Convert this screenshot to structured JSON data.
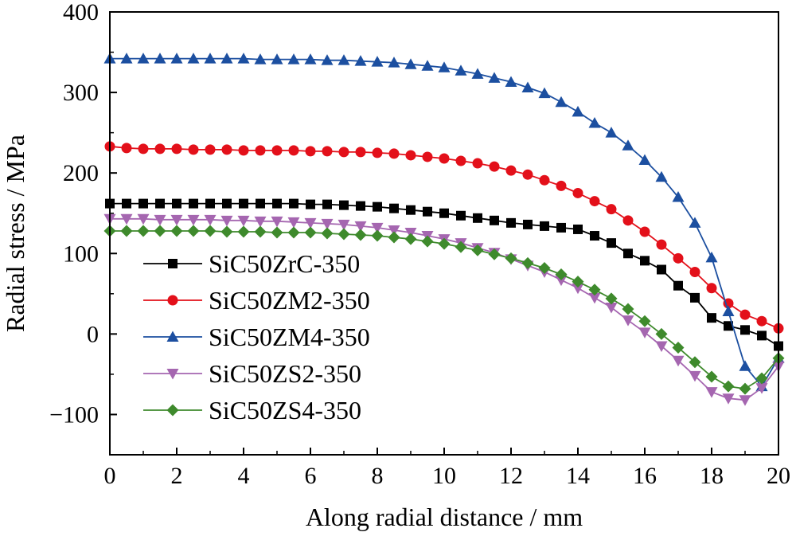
{
  "chart_data": {
    "type": "line",
    "title": "",
    "xlabel": "Along radial distance / mm",
    "ylabel": "Radial stress / MPa",
    "xlim": [
      0,
      20
    ],
    "ylim": [
      -150,
      400
    ],
    "xticks": [
      0,
      2,
      4,
      6,
      8,
      10,
      12,
      14,
      16,
      18,
      20
    ],
    "yticks": [
      -100,
      0,
      100,
      200,
      300,
      400
    ],
    "ytick_labels": [
      "−100",
      "0",
      "100",
      "200",
      "300",
      "400"
    ],
    "grid": false,
    "legend_position": "lower-left",
    "x": [
      0,
      0.5,
      1,
      1.5,
      2,
      2.5,
      3,
      3.5,
      4,
      4.5,
      5,
      5.5,
      6,
      6.5,
      7,
      7.5,
      8,
      8.5,
      9,
      9.5,
      10,
      10.5,
      11,
      11.5,
      12,
      12.5,
      13,
      13.5,
      14,
      14.5,
      15,
      15.5,
      16,
      16.5,
      17,
      17.5,
      18,
      18.5,
      19,
      19.5,
      20
    ],
    "series": [
      {
        "name": "SiC50ZrC-350",
        "color": "#000000",
        "marker": "square",
        "values": [
          162,
          162,
          162,
          162,
          162,
          162,
          162,
          162,
          162,
          162,
          162,
          162,
          161,
          161,
          160,
          159,
          158,
          156,
          154,
          152,
          150,
          147,
          144,
          141,
          138,
          136,
          134,
          132,
          130,
          122,
          113,
          100,
          91,
          80,
          60,
          45,
          20,
          10,
          5,
          -2,
          -15
        ]
      },
      {
        "name": "SiC50ZM2-350",
        "color": "#e3101a",
        "marker": "circle",
        "values": [
          233,
          231,
          230,
          230,
          230,
          229,
          229,
          229,
          228,
          228,
          228,
          228,
          227,
          227,
          226,
          226,
          225,
          224,
          222,
          220,
          218,
          215,
          212,
          208,
          203,
          198,
          191,
          184,
          175,
          165,
          155,
          141,
          127,
          111,
          94,
          77,
          57,
          38,
          24,
          16,
          7
        ]
      },
      {
        "name": "SiC50ZM4-350",
        "color": "#1c4fa0",
        "marker": "triangle-up",
        "values": [
          342,
          342,
          342,
          342,
          342,
          342,
          342,
          342,
          342,
          341,
          341,
          341,
          341,
          340,
          340,
          339,
          338,
          337,
          335,
          333,
          331,
          327,
          323,
          318,
          313,
          306,
          299,
          288,
          276,
          262,
          250,
          234,
          216,
          195,
          170,
          138,
          95,
          28,
          -40,
          -65,
          -30
        ]
      },
      {
        "name": "SiC50ZS2-350",
        "color": "#a566b0",
        "marker": "triangle-down",
        "values": [
          143,
          143,
          143,
          142,
          142,
          142,
          142,
          141,
          141,
          140,
          140,
          139,
          138,
          137,
          136,
          134,
          132,
          129,
          126,
          122,
          118,
          113,
          107,
          101,
          93,
          85,
          77,
          67,
          57,
          45,
          33,
          17,
          2,
          -15,
          -33,
          -52,
          -72,
          -80,
          -82,
          -67,
          -40
        ]
      },
      {
        "name": "SiC50ZS4-350",
        "color": "#3e8a2c",
        "marker": "diamond",
        "values": [
          128,
          128,
          128,
          128,
          128,
          128,
          128,
          127,
          127,
          127,
          126,
          126,
          126,
          125,
          124,
          123,
          122,
          120,
          118,
          115,
          112,
          108,
          104,
          99,
          94,
          88,
          82,
          74,
          65,
          55,
          44,
          31,
          16,
          0,
          -17,
          -35,
          -53,
          -65,
          -68,
          -55,
          -30
        ]
      }
    ]
  }
}
